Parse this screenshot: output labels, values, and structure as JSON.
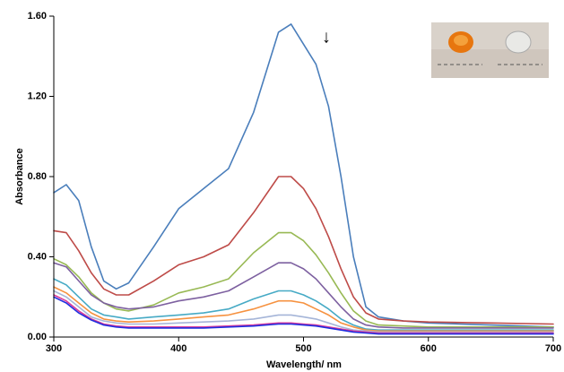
{
  "chart_data": {
    "type": "line",
    "x_label": "Wavelength/ nm",
    "y_label": "Absorbance",
    "annotation": "↓",
    "x": [
      300,
      310,
      320,
      330,
      340,
      350,
      360,
      380,
      400,
      420,
      440,
      460,
      480,
      490,
      500,
      510,
      520,
      530,
      540,
      550,
      560,
      580,
      600,
      650,
      700
    ],
    "series": [
      {
        "color": "#4a7ebb",
        "values": [
          0.72,
          0.76,
          0.68,
          0.45,
          0.28,
          0.24,
          0.27,
          0.45,
          0.64,
          0.74,
          0.84,
          1.12,
          1.52,
          1.56,
          1.46,
          1.36,
          1.15,
          0.8,
          0.4,
          0.15,
          0.1,
          0.08,
          0.07,
          0.06,
          0.05
        ]
      },
      {
        "color": "#be4b48",
        "values": [
          0.53,
          0.52,
          0.43,
          0.32,
          0.24,
          0.21,
          0.21,
          0.28,
          0.36,
          0.4,
          0.46,
          0.62,
          0.8,
          0.8,
          0.74,
          0.64,
          0.5,
          0.34,
          0.2,
          0.12,
          0.09,
          0.08,
          0.075,
          0.07,
          0.065
        ]
      },
      {
        "color": "#98b954",
        "values": [
          0.39,
          0.36,
          0.3,
          0.22,
          0.17,
          0.14,
          0.13,
          0.16,
          0.22,
          0.25,
          0.29,
          0.42,
          0.52,
          0.52,
          0.48,
          0.41,
          0.32,
          0.22,
          0.13,
          0.08,
          0.06,
          0.055,
          0.05,
          0.05,
          0.05
        ]
      },
      {
        "color": "#7d60a0",
        "values": [
          0.37,
          0.35,
          0.28,
          0.21,
          0.17,
          0.15,
          0.14,
          0.15,
          0.18,
          0.2,
          0.23,
          0.3,
          0.37,
          0.37,
          0.34,
          0.29,
          0.22,
          0.15,
          0.09,
          0.06,
          0.05,
          0.045,
          0.045,
          0.045,
          0.045
        ]
      },
      {
        "color": "#46aac5",
        "values": [
          0.29,
          0.26,
          0.2,
          0.14,
          0.11,
          0.1,
          0.09,
          0.1,
          0.11,
          0.12,
          0.14,
          0.19,
          0.23,
          0.23,
          0.21,
          0.18,
          0.14,
          0.09,
          0.06,
          0.04,
          0.035,
          0.035,
          0.035,
          0.035,
          0.035
        ]
      },
      {
        "color": "#f69240",
        "values": [
          0.25,
          0.22,
          0.17,
          0.12,
          0.09,
          0.08,
          0.075,
          0.08,
          0.09,
          0.1,
          0.11,
          0.14,
          0.18,
          0.18,
          0.17,
          0.14,
          0.11,
          0.07,
          0.05,
          0.035,
          0.03,
          0.03,
          0.03,
          0.03,
          0.03
        ]
      },
      {
        "color": "#a5b5d8",
        "values": [
          0.23,
          0.2,
          0.15,
          0.1,
          0.08,
          0.07,
          0.065,
          0.065,
          0.07,
          0.075,
          0.08,
          0.09,
          0.11,
          0.11,
          0.1,
          0.09,
          0.07,
          0.05,
          0.035,
          0.03,
          0.025,
          0.025,
          0.025,
          0.025,
          0.025
        ]
      },
      {
        "color": "#d9399b",
        "values": [
          0.21,
          0.18,
          0.13,
          0.09,
          0.065,
          0.055,
          0.05,
          0.05,
          0.05,
          0.05,
          0.055,
          0.06,
          0.07,
          0.07,
          0.065,
          0.06,
          0.05,
          0.04,
          0.03,
          0.025,
          0.02,
          0.02,
          0.02,
          0.02,
          0.02
        ]
      },
      {
        "color": "#1f2fe0",
        "values": [
          0.2,
          0.17,
          0.12,
          0.085,
          0.06,
          0.05,
          0.045,
          0.045,
          0.045,
          0.045,
          0.05,
          0.055,
          0.065,
          0.065,
          0.06,
          0.055,
          0.045,
          0.035,
          0.025,
          0.02,
          0.015,
          0.015,
          0.015,
          0.015,
          0.015
        ]
      }
    ],
    "xlim": [
      300,
      700
    ],
    "xticks": [
      300,
      400,
      500,
      600,
      700
    ],
    "ylim": [
      0,
      1.6
    ],
    "yticks": [
      {
        "value": 0,
        "label": "0.00"
      },
      {
        "value": 0.4,
        "label": "0.40"
      },
      {
        "value": 0.8,
        "label": "0.80"
      },
      {
        "value": 1.2,
        "label": "1.20"
      },
      {
        "value": 1.6,
        "label": "1.60"
      }
    ]
  }
}
